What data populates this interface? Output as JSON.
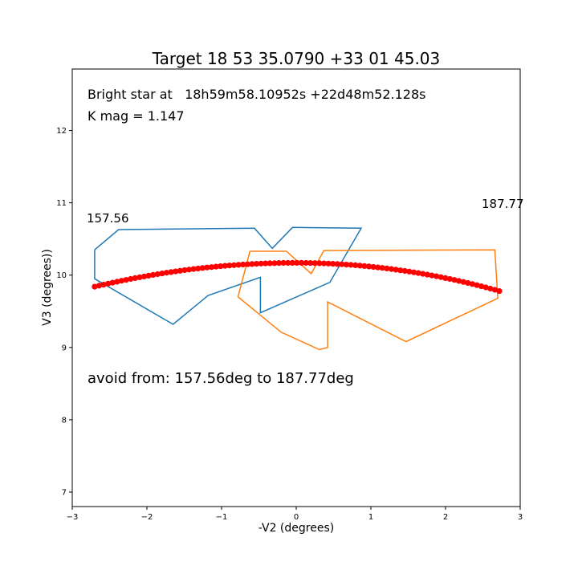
{
  "chart_data": {
    "type": "scatter",
    "title": "Target 18 53 35.0790 +33 01 45.03",
    "xlabel": "-V2 (degrees)",
    "ylabel": "V3 (degrees))",
    "xlim": [
      -3,
      3
    ],
    "ylim": [
      6.8,
      12.85
    ],
    "xticks": [
      -3,
      -2,
      -1,
      0,
      1,
      2,
      3
    ],
    "yticks": [
      7,
      8,
      9,
      10,
      11,
      12
    ],
    "grid": false,
    "annotations": {
      "bright_star": "Bright star at   18h59m58.10952s +22d48m52.128s",
      "kmag": "K mag = 1.147",
      "start_angle": "157.56",
      "end_angle": "187.77",
      "avoid": "avoid from: 157.56deg to 187.77deg"
    },
    "polygons": [
      {
        "color": "#1f77b4",
        "x": [
          -2.7,
          -2.38,
          -0.56,
          -0.32,
          -0.05,
          0.87,
          0.45,
          -0.48,
          -0.48,
          -1.18,
          -1.65,
          -2.7,
          -2.7
        ],
        "y": [
          10.35,
          10.63,
          10.65,
          10.37,
          10.66,
          10.65,
          9.9,
          9.48,
          9.97,
          9.72,
          9.32,
          9.95,
          10.35
        ]
      },
      {
        "color": "#ff7f0e",
        "x": [
          -0.62,
          -0.13,
          0.2,
          0.37,
          2.66,
          2.7,
          1.47,
          0.42,
          0.42,
          0.31,
          -0.2,
          -0.78,
          -0.62
        ],
        "y": [
          10.33,
          10.33,
          10.02,
          10.34,
          10.35,
          9.68,
          9.08,
          9.63,
          9.0,
          8.97,
          9.21,
          9.7,
          10.33
        ]
      }
    ],
    "track": {
      "color": "#ff0000",
      "x_start": -2.7,
      "x_end": 2.72,
      "y_start": 9.84,
      "y_end": 9.78,
      "y_peak": 10.17,
      "x_peak": 0.0,
      "n_points": 91
    }
  }
}
